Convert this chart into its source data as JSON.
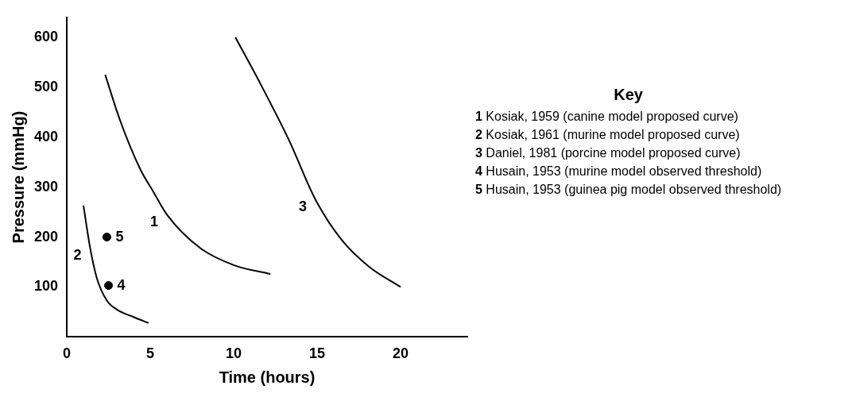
{
  "chart_data": {
    "type": "line",
    "xlabel": "Time (hours)",
    "ylabel": "Pressure (mmHg)",
    "legend_title": "Key",
    "xlim": [
      0,
      24
    ],
    "ylim": [
      0,
      640
    ],
    "xticks": [
      0,
      5,
      10,
      15,
      20
    ],
    "yticks": [
      100,
      200,
      300,
      400,
      500,
      600
    ],
    "grid": false,
    "legend": false,
    "line_style": "solid",
    "series": [
      {
        "color": "#000000",
        "marker": "none",
        "x": [
          2.3,
          3.2,
          4.4,
          5.2,
          6.0,
          8.0,
          10.0,
          12.2
        ],
        "values": [
          525,
          433,
          336,
          290,
          245,
          178,
          144,
          126
        ]
      },
      {
        "color": "#000000",
        "marker": "none",
        "x": [
          1.0,
          1.4,
          1.8,
          2.4,
          3.0,
          4.0,
          4.9
        ],
        "values": [
          263,
          178,
          118,
          73,
          55,
          40,
          28
        ]
      },
      {
        "color": "#000000",
        "marker": "none",
        "x": [
          10.1,
          11.6,
          13.3,
          14.9,
          16.5,
          18.1,
          20.0
        ],
        "values": [
          600,
          507,
          395,
          275,
          193,
          141,
          100
        ]
      },
      {
        "type": "scatter",
        "color": "#000000",
        "marker": "circle",
        "x": [
          2.5
        ],
        "values": [
          103
        ]
      },
      {
        "type": "scatter",
        "color": "#000000",
        "marker": "circle",
        "x": [
          2.4
        ],
        "values": [
          200
        ]
      }
    ],
    "annotations": [
      {
        "text": "1",
        "x": 6.0,
        "y": 245
      },
      {
        "text": "2",
        "x": 1.4,
        "y": 178
      },
      {
        "text": "3",
        "x": 14.9,
        "y": 275
      },
      {
        "text": "4",
        "x": 2.5,
        "y": 103
      },
      {
        "text": "5",
        "x": 2.4,
        "y": 200
      },
      "1 Kosiak, 1959 (canine model proposed curve)",
      "2 Kosiak, 1961 (murine model proposed curve)",
      "3 Daniel, 1981 (porcine model proposed curve)",
      "4 Husain, 1953 (murine model observed threshold)",
      "5 Husain, 1953 (guinea pig model observed threshold)"
    ]
  }
}
